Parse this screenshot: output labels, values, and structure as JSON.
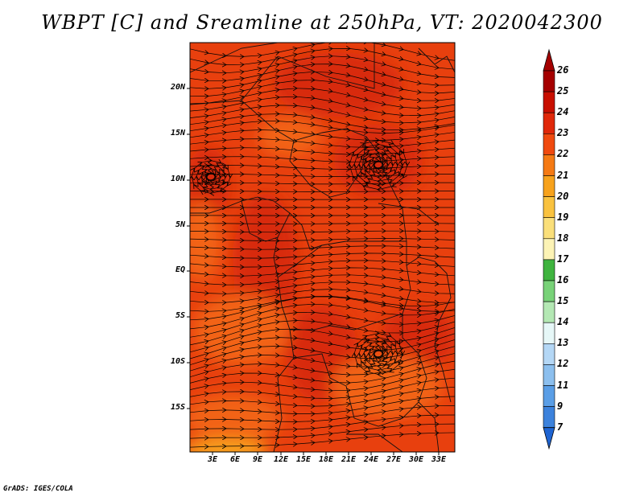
{
  "title": "WBPT [C] and Sreamline at 250hPa, VT: 2020042300",
  "credit": "GrADS: IGES/COLA",
  "lat_labels": [
    "20N",
    "15N",
    "10N",
    "5N",
    "EQ",
    "5S",
    "10S",
    "15S"
  ],
  "lon_labels": [
    "3E",
    "6E",
    "9E",
    "12E",
    "15E",
    "18E",
    "21E",
    "24E",
    "27E",
    "30E",
    "33E"
  ],
  "colorbar": {
    "labels": [
      "26",
      "25",
      "24",
      "23",
      "22",
      "21",
      "20",
      "19",
      "18",
      "17",
      "16",
      "15",
      "14",
      "13",
      "12",
      "11",
      "9",
      "7"
    ],
    "colors": [
      "#a50000",
      "#c80f00",
      "#e0280a",
      "#f04a0f",
      "#f57a14",
      "#f7a21c",
      "#f9c23f",
      "#fadf7a",
      "#fcf3b5",
      "#3fb43f",
      "#78d278",
      "#b4e8b4",
      "#e6f7f7",
      "#b4d7f5",
      "#8cbfee",
      "#5a9ee6",
      "#3c82dc",
      "#1e64d2"
    ],
    "top_arrow_color": "#a50000",
    "bottom_arrow_color": "#1e64d2"
  },
  "field_colors": {
    "base": "#e8400e",
    "warm": "#d8290a",
    "cool": "#f26418",
    "coolest": "#f7a21c"
  }
}
